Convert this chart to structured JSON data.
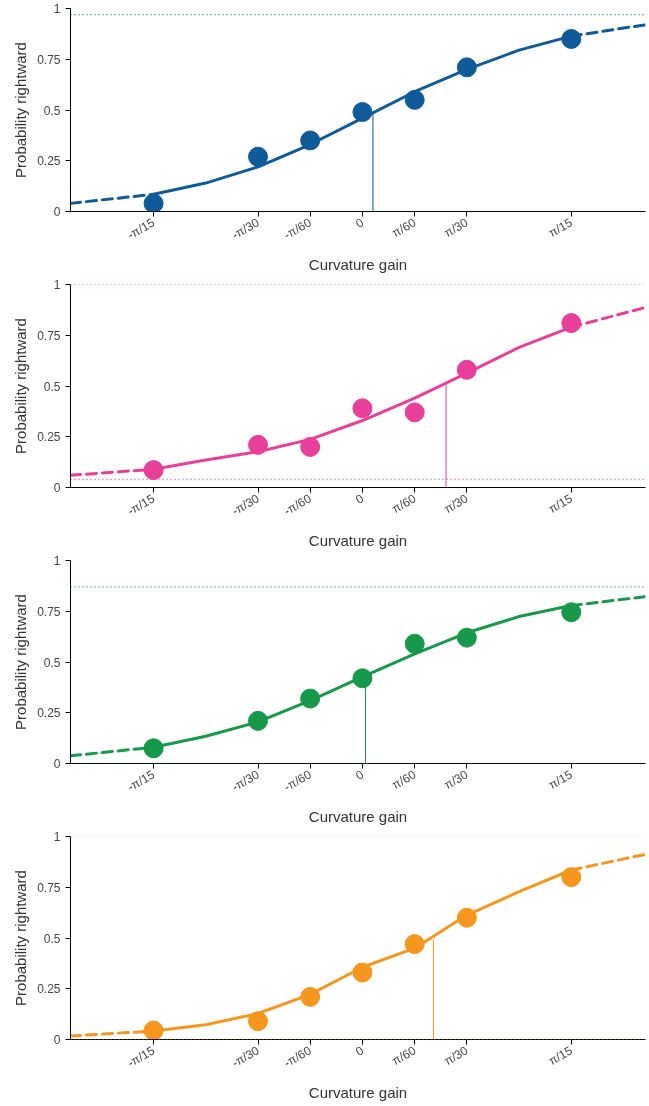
{
  "chart_data": [
    {
      "type": "scatter",
      "xlabel": "Curvature gain",
      "ylabel": "Probability rightward",
      "marker": "circle",
      "xlim": [
        -0.2927,
        0.2838
      ],
      "ylim": [
        0,
        1
      ],
      "xticks": [
        {
          "value": -0.2094,
          "label": "-π/15"
        },
        {
          "value": -0.1047,
          "label": "-π/30"
        },
        {
          "value": -0.0524,
          "label": "-π/60"
        },
        {
          "value": 0,
          "label": "0"
        },
        {
          "value": 0.0524,
          "label": "π/60"
        },
        {
          "value": 0.1047,
          "label": "π/30"
        },
        {
          "value": 0.2094,
          "label": "π/15"
        }
      ],
      "yticks": [
        0,
        0.25,
        0.5,
        0.75,
        1
      ],
      "x": [
        -0.2094,
        -0.1047,
        -0.0524,
        0,
        0.0524,
        0.1047,
        0.2094
      ],
      "series": [
        {
          "type": "line",
          "marker": "none",
          "line_style": "dashed",
          "color": "#0f5a99",
          "x": [
            -0.2927,
            -0.2094
          ],
          "values": [
            0.04,
            0.085
          ]
        },
        {
          "type": "line",
          "marker": "none",
          "line_style": "solid",
          "color": "#0f5a99",
          "x": [
            -0.2094,
            -0.1571,
            -0.1047,
            -0.0524,
            0,
            0.0524,
            0.1047,
            0.1571,
            0.2094
          ],
          "values": [
            0.085,
            0.14,
            0.22,
            0.33,
            0.46,
            0.59,
            0.7,
            0.795,
            0.864
          ]
        },
        {
          "type": "line",
          "marker": "none",
          "line_style": "dashed",
          "color": "#0f5a99",
          "x": [
            0.2094,
            0.2838
          ],
          "values": [
            0.864,
            0.92
          ]
        },
        {
          "type": "line",
          "marker": "none",
          "line_style": "solid",
          "color": "#0f5a99",
          "x": [
            0.0105,
            0.0105
          ],
          "values": [
            0,
            0.48
          ]
        },
        {
          "color": "#0f5a99",
          "values": [
            0.04,
            0.27,
            0.35,
            0.49,
            0.55,
            0.71,
            0.85
          ]
        }
      ],
      "ref_lines": [
        {
          "axis": "y",
          "value": 0.97,
          "color": "#0f5a99",
          "line_style": "dotted"
        },
        {
          "axis": "y",
          "value": 0,
          "color": "#0f5a99",
          "line_style": "dotted"
        }
      ]
    },
    {
      "type": "scatter",
      "xlabel": "Curvature gain",
      "ylabel": "Probability rightward",
      "marker": "circle",
      "xlim": [
        -0.2927,
        0.2838
      ],
      "ylim": [
        0,
        1
      ],
      "xticks": [
        {
          "value": -0.2094,
          "label": "-π/15"
        },
        {
          "value": -0.1047,
          "label": "-π/30"
        },
        {
          "value": -0.0524,
          "label": "-π/60"
        },
        {
          "value": 0,
          "label": "0"
        },
        {
          "value": 0.0524,
          "label": "π/60"
        },
        {
          "value": 0.1047,
          "label": "π/30"
        },
        {
          "value": 0.2094,
          "label": "π/15"
        }
      ],
      "yticks": [
        0,
        0.25,
        0.5,
        0.75,
        1
      ],
      "x": [
        -0.2094,
        -0.1047,
        -0.0524,
        0,
        0.0524,
        0.1047,
        0.2094
      ],
      "series": [
        {
          "type": "line",
          "marker": "none",
          "line_style": "dashed",
          "color": "#e8409a",
          "x": [
            -0.2927,
            -0.2094
          ],
          "values": [
            0.06,
            0.09
          ]
        },
        {
          "type": "line",
          "marker": "none",
          "line_style": "solid",
          "color": "#e8409a",
          "x": [
            -0.2094,
            -0.1571,
            -0.1047,
            -0.0524,
            0,
            0.0524,
            0.1047,
            0.1571,
            0.2094
          ],
          "values": [
            0.09,
            0.135,
            0.176,
            0.237,
            0.33,
            0.44,
            0.563,
            0.69,
            0.79
          ]
        },
        {
          "type": "line",
          "marker": "none",
          "line_style": "dashed",
          "color": "#e8409a",
          "x": [
            0.2094,
            0.2838
          ],
          "values": [
            0.79,
            0.887
          ]
        },
        {
          "type": "line",
          "marker": "none",
          "line_style": "solid",
          "color": "#e8409a",
          "x": [
            0.0838,
            0.0838
          ],
          "values": [
            0,
            0.517
          ]
        },
        {
          "color": "#e8409a",
          "values": [
            0.086,
            0.21,
            0.2,
            0.39,
            0.37,
            0.58,
            0.81
          ]
        }
      ],
      "ref_lines": [
        {
          "axis": "y",
          "value": 1,
          "color": "#e8409a",
          "line_style": "dotted"
        },
        {
          "axis": "y",
          "value": 0.04,
          "color": "#e8409a",
          "line_style": "dotted"
        }
      ]
    },
    {
      "type": "scatter",
      "xlabel": "Curvature gain",
      "ylabel": "Probability rightward",
      "marker": "circle",
      "xlim": [
        -0.2927,
        0.2838
      ],
      "ylim": [
        0,
        1
      ],
      "xticks": [
        {
          "value": -0.2094,
          "label": "-π/15"
        },
        {
          "value": -0.1047,
          "label": "-π/30"
        },
        {
          "value": -0.0524,
          "label": "-π/60"
        },
        {
          "value": 0,
          "label": "0"
        },
        {
          "value": 0.0524,
          "label": "π/60"
        },
        {
          "value": 0.1047,
          "label": "π/30"
        },
        {
          "value": 0.2094,
          "label": "π/15"
        }
      ],
      "yticks": [
        0,
        0.25,
        0.5,
        0.75,
        1
      ],
      "x": [
        -0.2094,
        -0.1047,
        -0.0524,
        0,
        0.0524,
        0.1047,
        0.2094
      ],
      "series": [
        {
          "type": "line",
          "marker": "none",
          "line_style": "dashed",
          "color": "#16994a",
          "x": [
            -0.2927,
            -0.2094
          ],
          "values": [
            0.038,
            0.08
          ]
        },
        {
          "type": "line",
          "marker": "none",
          "line_style": "solid",
          "color": "#16994a",
          "x": [
            -0.2094,
            -0.1571,
            -0.1047,
            -0.0524,
            0,
            0.0524,
            0.1047,
            0.1571,
            0.2094
          ],
          "values": [
            0.08,
            0.134,
            0.205,
            0.31,
            0.427,
            0.54,
            0.644,
            0.724,
            0.778
          ]
        },
        {
          "type": "line",
          "marker": "none",
          "line_style": "dashed",
          "color": "#16994a",
          "x": [
            0.2094,
            0.2838
          ],
          "values": [
            0.778,
            0.822
          ]
        },
        {
          "type": "line",
          "marker": "none",
          "line_style": "solid",
          "color": "#16994a",
          "x": [
            0.0031,
            0.0031
          ],
          "values": [
            0,
            0.427
          ]
        },
        {
          "color": "#16994a",
          "values": [
            0.075,
            0.21,
            0.32,
            0.42,
            0.59,
            0.62,
            0.745
          ]
        }
      ],
      "ref_lines": [
        {
          "axis": "y",
          "value": 0.87,
          "color": "#16994a",
          "line_style": "dotted"
        },
        {
          "axis": "y",
          "value": 0,
          "color": "#16994a",
          "line_style": "dotted"
        }
      ]
    },
    {
      "type": "scatter",
      "xlabel": "Curvature gain",
      "ylabel": "Probability rightward",
      "marker": "circle",
      "xlim": [
        -0.2927,
        0.2838
      ],
      "ylim": [
        0,
        1
      ],
      "xticks": [
        {
          "value": -0.2094,
          "label": "-π/15"
        },
        {
          "value": -0.1047,
          "label": "-π/30"
        },
        {
          "value": -0.0524,
          "label": "-π/60"
        },
        {
          "value": 0,
          "label": "0"
        },
        {
          "value": 0.0524,
          "label": "π/60"
        },
        {
          "value": 0.1047,
          "label": "π/30"
        },
        {
          "value": 0.2094,
          "label": "π/15"
        }
      ],
      "yticks": [
        0,
        0.25,
        0.5,
        0.75,
        1
      ],
      "x": [
        -0.2094,
        -0.1047,
        -0.0524,
        0,
        0.0524,
        0.1047,
        0.2094
      ],
      "series": [
        {
          "type": "line",
          "marker": "none",
          "line_style": "dashed",
          "color": "#f5961e",
          "x": [
            -0.2927,
            -0.2094
          ],
          "values": [
            0.017,
            0.042
          ]
        },
        {
          "type": "line",
          "marker": "none",
          "line_style": "solid",
          "color": "#f5961e",
          "x": [
            -0.2094,
            -0.1571,
            -0.1047,
            -0.0524,
            0,
            0.0524,
            0.1047,
            0.1571,
            0.2094
          ],
          "values": [
            0.042,
            0.073,
            0.128,
            0.222,
            0.356,
            0.45,
            0.613,
            0.728,
            0.835
          ]
        },
        {
          "type": "line",
          "marker": "none",
          "line_style": "dashed",
          "color": "#f5961e",
          "x": [
            0.2094,
            0.2838
          ],
          "values": [
            0.835,
            0.912
          ]
        },
        {
          "type": "line",
          "marker": "none",
          "line_style": "solid",
          "color": "#f5961e",
          "x": [
            0.0712,
            0.0712
          ],
          "values": [
            0,
            0.49
          ]
        },
        {
          "color": "#f5961e",
          "values": [
            0.044,
            0.09,
            0.21,
            0.33,
            0.47,
            0.6,
            0.8
          ]
        }
      ],
      "ref_lines": [
        {
          "axis": "y",
          "value": 1,
          "color": "#f5961e",
          "line_style": "dotted"
        },
        {
          "axis": "y",
          "value": 0,
          "color": "#f5961e",
          "line_style": "dotted"
        }
      ]
    }
  ]
}
